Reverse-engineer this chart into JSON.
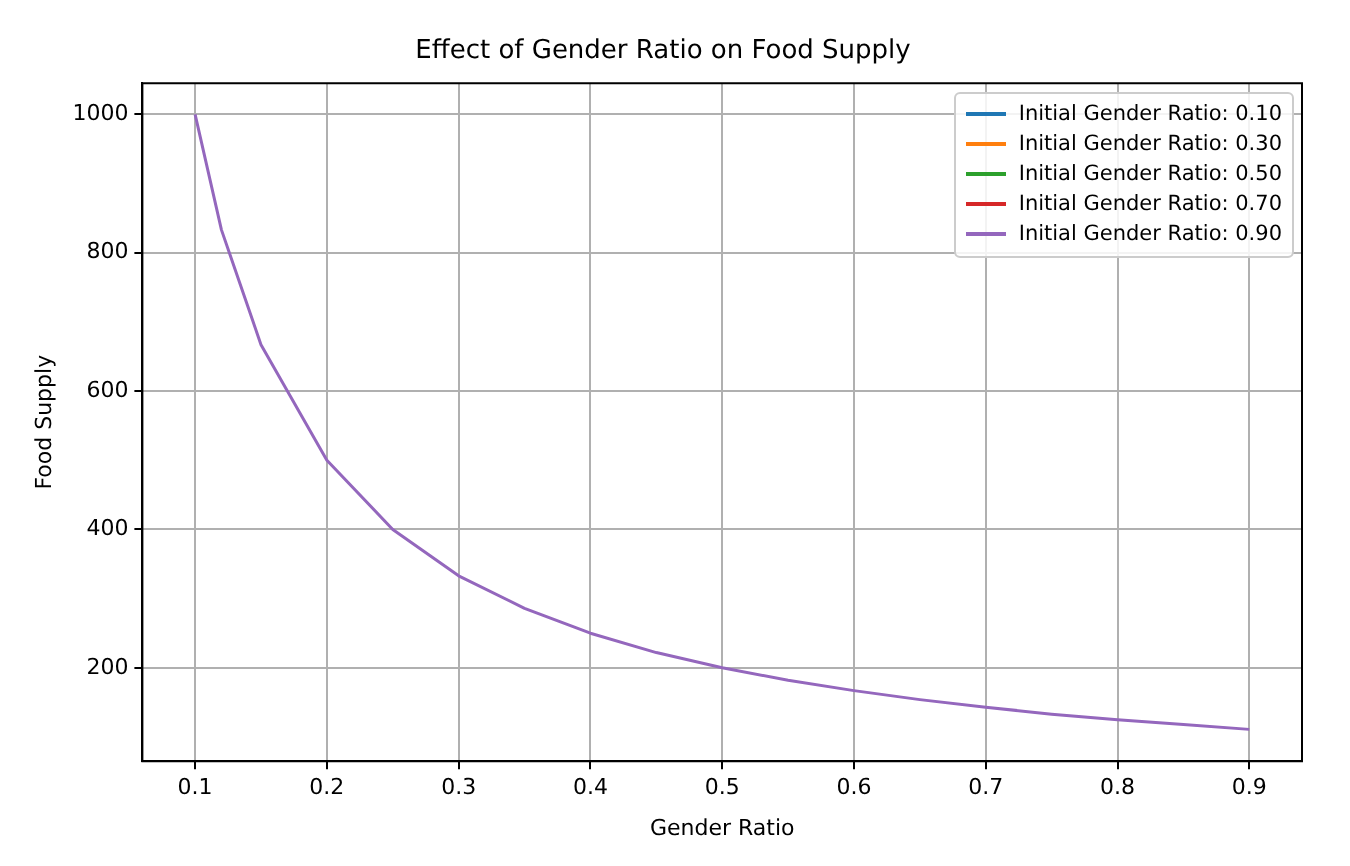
{
  "chart_data": {
    "type": "line",
    "title": "Effect of Gender Ratio on Food Supply",
    "xlabel": "Gender Ratio",
    "ylabel": "Food Supply",
    "xlim": [
      0.06,
      0.94
    ],
    "xticks": [
      0.1,
      0.2,
      0.3,
      0.4,
      0.5,
      0.6,
      0.7,
      0.8,
      0.9
    ],
    "ylim": [
      65,
      1045
    ],
    "yticks": [
      200,
      400,
      600,
      800,
      1000
    ],
    "grid": true,
    "legend": "top right",
    "marker": "none",
    "line_style": "solid",
    "x": [
      0.1,
      0.12,
      0.15,
      0.2,
      0.25,
      0.3,
      0.35,
      0.4,
      0.45,
      0.5,
      0.55,
      0.6,
      0.65,
      0.7,
      0.75,
      0.8,
      0.85,
      0.9
    ],
    "series": [
      {
        "name": "Initial Gender Ratio: 0.10",
        "color": "#1f77b4",
        "values": [
          null,
          null,
          null,
          null,
          null,
          null,
          null,
          null,
          null,
          null,
          null,
          null,
          null,
          null,
          null,
          null,
          null,
          null
        ]
      },
      {
        "name": "Initial Gender Ratio: 0.30",
        "color": "#ff7f0e",
        "values": [
          null,
          null,
          null,
          null,
          null,
          null,
          null,
          null,
          null,
          null,
          null,
          null,
          null,
          null,
          null,
          null,
          null,
          null
        ]
      },
      {
        "name": "Initial Gender Ratio: 0.50",
        "color": "#2ca02c",
        "values": [
          null,
          null,
          null,
          null,
          null,
          null,
          null,
          null,
          null,
          null,
          null,
          null,
          null,
          null,
          null,
          null,
          null,
          null
        ]
      },
      {
        "name": "Initial Gender Ratio: 0.70",
        "color": "#d62728",
        "values": [
          null,
          null,
          null,
          null,
          null,
          null,
          null,
          null,
          null,
          null,
          null,
          null,
          null,
          null,
          null,
          null,
          null,
          null
        ]
      },
      {
        "name": "Initial Gender Ratio: 0.90",
        "color": "#9467bd",
        "values": [
          1000,
          833,
          667,
          500,
          400,
          333,
          286,
          250,
          222,
          200,
          182,
          167,
          154,
          143,
          133,
          125,
          118,
          111
        ]
      }
    ]
  }
}
